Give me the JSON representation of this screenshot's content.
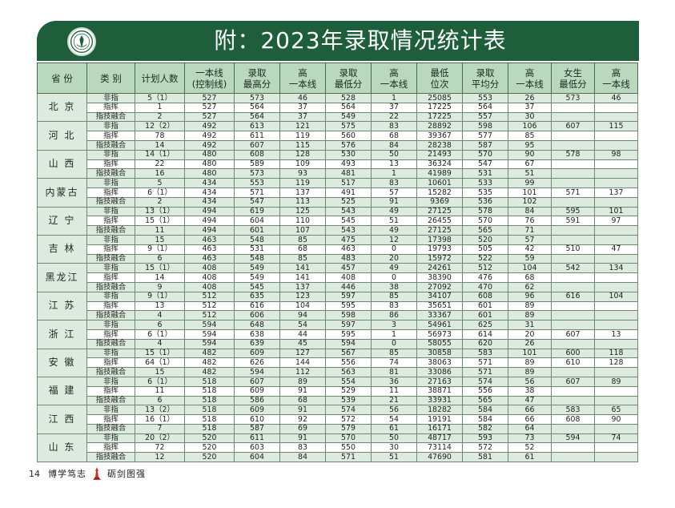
{
  "header": {
    "title": "附：2023年录取情况统计表"
  },
  "table": {
    "columns": [
      "省 份",
      "类 别",
      "计划人数",
      "一本线\n(控制线)",
      "录取\n最高分",
      "高\n一本线",
      "录取\n最低分",
      "高\n一本线",
      "最低\n位次",
      "录取\n平均分",
      "高\n一本线",
      "女生\n最低分",
      "高\n一本线"
    ],
    "groups": [
      {
        "province": "北 京",
        "rows": [
          [
            "非指",
            "5（1）",
            "527",
            "573",
            "46",
            "528",
            "1",
            "25085",
            "553",
            "26",
            "573",
            "46"
          ],
          [
            "指挥",
            "1",
            "527",
            "564",
            "37",
            "564",
            "37",
            "17225",
            "564",
            "37",
            "",
            ""
          ],
          [
            "指技融合",
            "2",
            "527",
            "564",
            "37",
            "549",
            "22",
            "17225",
            "557",
            "30",
            "",
            ""
          ]
        ]
      },
      {
        "province": "河 北",
        "rows": [
          [
            "非指",
            "12（2）",
            "492",
            "613",
            "121",
            "575",
            "83",
            "28892",
            "598",
            "106",
            "607",
            "115"
          ],
          [
            "指挥",
            "78",
            "492",
            "611",
            "119",
            "560",
            "68",
            "39367",
            "577",
            "85",
            "",
            ""
          ],
          [
            "指技融合",
            "14",
            "492",
            "607",
            "115",
            "576",
            "84",
            "28238",
            "587",
            "95",
            "",
            ""
          ]
        ]
      },
      {
        "province": "山 西",
        "rows": [
          [
            "非指",
            "14（1）",
            "480",
            "608",
            "128",
            "530",
            "50",
            "21493",
            "570",
            "90",
            "578",
            "98"
          ],
          [
            "指挥",
            "22",
            "480",
            "589",
            "109",
            "493",
            "13",
            "36324",
            "547",
            "67",
            "",
            ""
          ],
          [
            "指技融合",
            "16",
            "480",
            "573",
            "93",
            "481",
            "1",
            "41989",
            "531",
            "51",
            "",
            ""
          ]
        ]
      },
      {
        "province": "内蒙古",
        "rows": [
          [
            "非指",
            "5",
            "434",
            "553",
            "119",
            "517",
            "83",
            "10601",
            "533",
            "99",
            "",
            ""
          ],
          [
            "指挥",
            "6（1）",
            "434",
            "571",
            "137",
            "491",
            "57",
            "15282",
            "535",
            "101",
            "571",
            "137"
          ],
          [
            "指技融合",
            "2",
            "434",
            "547",
            "113",
            "525",
            "91",
            "9369",
            "536",
            "102",
            "",
            ""
          ]
        ]
      },
      {
        "province": "辽 宁",
        "rows": [
          [
            "非指",
            "13（1）",
            "494",
            "619",
            "125",
            "543",
            "49",
            "27125",
            "578",
            "84",
            "595",
            "101"
          ],
          [
            "指挥",
            "15（1）",
            "494",
            "604",
            "110",
            "545",
            "51",
            "26455",
            "570",
            "76",
            "591",
            "97"
          ],
          [
            "指技融合",
            "11",
            "494",
            "601",
            "107",
            "543",
            "49",
            "27125",
            "565",
            "71",
            "",
            ""
          ]
        ]
      },
      {
        "province": "吉 林",
        "rows": [
          [
            "非指",
            "15",
            "463",
            "548",
            "85",
            "475",
            "12",
            "17398",
            "520",
            "57",
            "",
            ""
          ],
          [
            "指挥",
            "9（1）",
            "463",
            "531",
            "68",
            "463",
            "0",
            "19793",
            "505",
            "42",
            "510",
            "47"
          ],
          [
            "指技融合",
            "6",
            "463",
            "548",
            "85",
            "483",
            "20",
            "15972",
            "522",
            "59",
            "",
            ""
          ]
        ]
      },
      {
        "province": "黑龙江",
        "rows": [
          [
            "非指",
            "15（1）",
            "408",
            "549",
            "141",
            "457",
            "49",
            "24261",
            "512",
            "104",
            "542",
            "134"
          ],
          [
            "指挥",
            "14",
            "408",
            "549",
            "141",
            "408",
            "0",
            "38390",
            "476",
            "68",
            "",
            ""
          ],
          [
            "指技融合",
            "9",
            "408",
            "545",
            "137",
            "446",
            "38",
            "27092",
            "470",
            "62",
            "",
            ""
          ]
        ]
      },
      {
        "province": "江 苏",
        "rows": [
          [
            "非指",
            "9（1）",
            "512",
            "635",
            "123",
            "597",
            "85",
            "34107",
            "608",
            "96",
            "616",
            "104"
          ],
          [
            "指挥",
            "13",
            "512",
            "616",
            "104",
            "595",
            "83",
            "35651",
            "601",
            "89",
            "",
            ""
          ],
          [
            "指技融合",
            "4",
            "512",
            "606",
            "94",
            "598",
            "86",
            "33367",
            "601",
            "89",
            "",
            ""
          ]
        ]
      },
      {
        "province": "浙 江",
        "rows": [
          [
            "非指",
            "6",
            "594",
            "648",
            "54",
            "597",
            "3",
            "54961",
            "625",
            "31",
            "",
            ""
          ],
          [
            "指挥",
            "6（1）",
            "594",
            "638",
            "44",
            "595",
            "1",
            "56973",
            "614",
            "20",
            "607",
            "13"
          ],
          [
            "指技融合",
            "4",
            "594",
            "639",
            "45",
            "594",
            "0",
            "58055",
            "620",
            "26",
            "",
            ""
          ]
        ]
      },
      {
        "province": "安 徽",
        "rows": [
          [
            "非指",
            "15（1）",
            "482",
            "609",
            "127",
            "567",
            "85",
            "30858",
            "583",
            "101",
            "600",
            "118"
          ],
          [
            "指挥",
            "64（1）",
            "482",
            "626",
            "144",
            "556",
            "74",
            "38063",
            "571",
            "89",
            "610",
            "128"
          ],
          [
            "指技融合",
            "15",
            "482",
            "594",
            "112",
            "563",
            "81",
            "33086",
            "571",
            "89",
            "",
            ""
          ]
        ]
      },
      {
        "province": "福 建",
        "rows": [
          [
            "非指",
            "6（1）",
            "518",
            "607",
            "89",
            "554",
            "36",
            "27163",
            "574",
            "56",
            "607",
            "89"
          ],
          [
            "指挥",
            "11",
            "518",
            "609",
            "91",
            "529",
            "11",
            "38871",
            "556",
            "38",
            "",
            ""
          ],
          [
            "指技融合",
            "6",
            "518",
            "586",
            "68",
            "539",
            "21",
            "33931",
            "565",
            "47",
            "",
            ""
          ]
        ]
      },
      {
        "province": "江 西",
        "rows": [
          [
            "非指",
            "13（2）",
            "518",
            "609",
            "91",
            "574",
            "56",
            "18282",
            "584",
            "66",
            "583",
            "65"
          ],
          [
            "指挥",
            "16（1）",
            "518",
            "610",
            "92",
            "572",
            "54",
            "19191",
            "584",
            "66",
            "608",
            "90"
          ],
          [
            "指技融合",
            "7",
            "518",
            "587",
            "69",
            "579",
            "61",
            "16171",
            "582",
            "64",
            "",
            ""
          ]
        ]
      },
      {
        "province": "山 东",
        "rows": [
          [
            "非指",
            "20（2）",
            "520",
            "611",
            "91",
            "570",
            "50",
            "48717",
            "593",
            "73",
            "594",
            "74"
          ],
          [
            "指挥",
            "72",
            "520",
            "603",
            "83",
            "550",
            "30",
            "73114",
            "572",
            "52",
            "",
            ""
          ],
          [
            "指技融合",
            "12",
            "520",
            "604",
            "84",
            "571",
            "51",
            "47690",
            "581",
            "61",
            "",
            ""
          ]
        ]
      }
    ]
  },
  "footer": {
    "page_number": "14",
    "left_text": "博学笃志",
    "right_text": "砺剑图强",
    "mark_icon": "tower-icon"
  },
  "colors": {
    "banner": "#1f5e3b",
    "header_fill": "#b9d8bd",
    "alt_row": "#dcebdd"
  }
}
